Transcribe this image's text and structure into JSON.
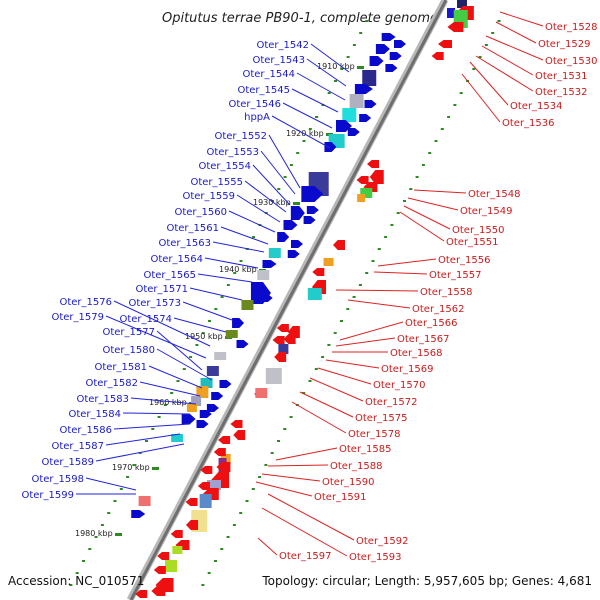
{
  "title": "Opitutus terrae PB90-1, complete genome",
  "footer": {
    "accession": "Accession: NC_010571",
    "topology": "Topology: circular; Length: 5,957,605 bp; Genes: 4,681"
  },
  "scale_labels": [
    "1910 kbp",
    "1920 kbp",
    "1930 kbp",
    "1940 kbp",
    "1950 kbp",
    "1960 kbp",
    "1970 kbp",
    "1980 kbp"
  ],
  "left_labels": [
    "Oter_1542",
    "Oter_1543",
    "Oter_1544",
    "Oter_1545",
    "Oter_1546",
    "hppA",
    "Oter_1552",
    "Oter_1553",
    "Oter_1554",
    "Oter_1555",
    "Oter_1559",
    "Oter_1560",
    "Oter_1561",
    "Oter_1563",
    "Oter_1564",
    "Oter_1565",
    "Oter_1571",
    "Oter_1573",
    "Oter_1574",
    "Oter_1576",
    "Oter_1579",
    "Oter_1577",
    "Oter_1580",
    "Oter_1581",
    "Oter_1582",
    "Oter_1583",
    "Oter_1584",
    "Oter_1586",
    "Oter_1587",
    "Oter_1589",
    "Oter_1598",
    "Oter_1599"
  ],
  "right_labels": [
    "Oter_1528",
    "Oter_1529",
    "Oter_1530",
    "Oter_1531",
    "Oter_1532",
    "Oter_1534",
    "Oter_1536",
    "Oter_1548",
    "Oter_1549",
    "Oter_1550",
    "Oter_1551",
    "Oter_1556",
    "Oter_1557",
    "Oter_1558",
    "Oter_1562",
    "Oter_1566",
    "Oter_1567",
    "Oter_1568",
    "Oter_1569",
    "Oter_1570",
    "Oter_1572",
    "Oter_1575",
    "Oter_1578",
    "Oter_1585",
    "Oter_1588",
    "Oter_1590",
    "Oter_1591",
    "Oter_1592",
    "Oter_1593",
    "Oter_1597"
  ],
  "colors": {
    "forward": "#0a0acc",
    "reverse": "#ee1010",
    "backbone": "#7a7a7a",
    "tick": "#2e8b22"
  }
}
